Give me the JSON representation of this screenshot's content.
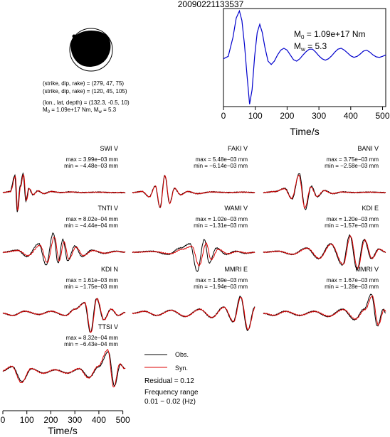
{
  "title": "20090221133537",
  "mechanism": {
    "lines": [
      "(strike, dip, rake) = (279, 47, 75)",
      "(strike, dip, rake) = (120, 45, 105)",
      "(lon., lat, depth) = (132.3, -0.5, 10)"
    ],
    "m0_line": "M₀ = 1.09e+17 Nm, Mᵥ = 5.3",
    "m0_prefix": "M",
    "m0_sub": "0",
    "m0_value": " = 1.09e+17 Nm, M",
    "mw_sub": "w",
    "mw_value": " = 5.3",
    "colors": {
      "compression": "#000000",
      "dilatation": "#ffffff"
    }
  },
  "stf": {
    "xlabel": "Time/s",
    "xticks": [
      0,
      100,
      200,
      300,
      400,
      500
    ],
    "xlim": [
      0,
      510
    ],
    "ylim": [
      -1.0,
      1.05
    ],
    "m0_text": " = 1.09e+17 Nm",
    "mw_text": " = 5.3",
    "m_letter": "M",
    "m0_sub": "0",
    "mw_sub": "w",
    "color": "#0000cc",
    "x": [
      0,
      15,
      30,
      40,
      50,
      58,
      66,
      74,
      82,
      90,
      98,
      106,
      114,
      122,
      130,
      140,
      150,
      160,
      170,
      180,
      190,
      200,
      210,
      220,
      230,
      240,
      250,
      260,
      270,
      280,
      290,
      300,
      310,
      320,
      330,
      340,
      350,
      360,
      370,
      380,
      390,
      400,
      410,
      420,
      430,
      440,
      450,
      460,
      470,
      480,
      490,
      500,
      510
    ],
    "y": [
      0.0,
      0.05,
      0.45,
      0.85,
      1.0,
      0.8,
      0.3,
      -0.35,
      -0.95,
      -0.65,
      0.05,
      0.55,
      0.72,
      0.55,
      0.25,
      -0.05,
      -0.12,
      -0.05,
      0.08,
      0.18,
      0.22,
      0.18,
      0.08,
      -0.02,
      -0.05,
      0.0,
      0.08,
      0.15,
      0.2,
      0.2,
      0.14,
      0.06,
      0.0,
      -0.03,
      0.0,
      0.06,
      0.14,
      0.2,
      0.22,
      0.18,
      0.12,
      0.06,
      0.03,
      0.05,
      0.1,
      0.16,
      0.18,
      0.14,
      0.08,
      0.04,
      0.03,
      0.05,
      0.08
    ]
  },
  "chart_data": {
    "type": "line",
    "title": "20090221133537",
    "xlabel": "Time/s",
    "xticks": [
      0,
      100,
      200,
      300,
      400,
      500
    ],
    "xlim": [
      0,
      510
    ],
    "legend": {
      "obs": "Obs.",
      "syn": "Syn.",
      "placement": "bottom-right"
    },
    "series_colors": {
      "obs": "#000000",
      "syn": "#dd0000"
    },
    "residual": "Residual = 0.12",
    "freq_label": "Frequency range",
    "freq_value": "0.01 − 0.02 (Hz)",
    "stations": [
      {
        "name": "SWI V",
        "max": "max = 3.99e−03 mm",
        "min": "min = −4.48e−03 mm",
        "peaks": [
          [
            0,
            0
          ],
          [
            30,
            0.05
          ],
          [
            50,
            0.8
          ],
          [
            60,
            -0.9
          ],
          [
            72,
            0.3
          ],
          [
            84,
            0.9
          ],
          [
            96,
            -0.4
          ],
          [
            108,
            0.2
          ],
          [
            125,
            -0.1
          ],
          [
            145,
            0.08
          ],
          [
            170,
            -0.05
          ],
          [
            200,
            0.05
          ],
          [
            240,
            0
          ],
          [
            280,
            0.03
          ],
          [
            330,
            0
          ],
          [
            400,
            0.02
          ],
          [
            450,
            0
          ],
          [
            510,
            0
          ]
        ],
        "syn_scale": 0.95,
        "syn_shift": 2
      },
      {
        "name": "FAKI V",
        "max": "max = 5.48e−03 mm",
        "min": "min = −6.14e−03 mm",
        "peaks": [
          [
            0,
            0
          ],
          [
            40,
            0.05
          ],
          [
            70,
            -0.2
          ],
          [
            95,
            0.3
          ],
          [
            115,
            -0.7
          ],
          [
            135,
            0.8
          ],
          [
            155,
            -0.5
          ],
          [
            175,
            0.2
          ],
          [
            200,
            -0.1
          ],
          [
            230,
            0.05
          ],
          [
            270,
            -0.05
          ],
          [
            330,
            0.03
          ],
          [
            400,
            0
          ],
          [
            460,
            0.02
          ],
          [
            510,
            0
          ]
        ],
        "syn_scale": 1.0,
        "syn_shift": 1
      },
      {
        "name": "BANI V",
        "max": "max = 3.75e−03 mm",
        "min": "min = −2.58e−03 mm",
        "peaks": [
          [
            0,
            0
          ],
          [
            50,
            0.05
          ],
          [
            90,
            0.2
          ],
          [
            120,
            -0.3
          ],
          [
            150,
            0.9
          ],
          [
            175,
            -0.8
          ],
          [
            200,
            0.3
          ],
          [
            225,
            -0.2
          ],
          [
            255,
            0.1
          ],
          [
            290,
            -0.05
          ],
          [
            330,
            0.03
          ],
          [
            380,
            0
          ],
          [
            440,
            0.02
          ],
          [
            510,
            0
          ]
        ],
        "syn_scale": 0.9,
        "syn_shift": -2
      },
      {
        "name": "TNTI V",
        "max": "max = 8.02e−04 mm",
        "min": "min = −4.44e−04 mm",
        "peaks": [
          [
            0,
            0
          ],
          [
            60,
            0.1
          ],
          [
            100,
            -0.2
          ],
          [
            150,
            0.4
          ],
          [
            180,
            -0.6
          ],
          [
            210,
            0.9
          ],
          [
            230,
            -0.5
          ],
          [
            250,
            0.6
          ],
          [
            270,
            -0.4
          ],
          [
            300,
            0.3
          ],
          [
            330,
            -0.2
          ],
          [
            370,
            0.1
          ],
          [
            420,
            -0.05
          ],
          [
            470,
            0.05
          ],
          [
            510,
            0
          ]
        ],
        "syn_scale": 0.8,
        "syn_shift": 5
      },
      {
        "name": "WAMI V",
        "max": "max = 1.02e−03 mm",
        "min": "min = −1.31e−03 mm",
        "peaks": [
          [
            0,
            0
          ],
          [
            80,
            0.05
          ],
          [
            150,
            -0.1
          ],
          [
            200,
            0.2
          ],
          [
            240,
            0.4
          ],
          [
            270,
            -0.9
          ],
          [
            300,
            0.6
          ],
          [
            320,
            -0.5
          ],
          [
            350,
            0.2
          ],
          [
            390,
            -0.1
          ],
          [
            430,
            0.05
          ],
          [
            470,
            -0.05
          ],
          [
            510,
            0
          ]
        ],
        "syn_scale": 0.7,
        "syn_shift": 8
      },
      {
        "name": "KDI E",
        "max": "max = 1.20e−03 mm",
        "min": "min = −1.57e−03 mm",
        "peaks": [
          [
            0,
            0
          ],
          [
            60,
            0.05
          ],
          [
            120,
            -0.1
          ],
          [
            180,
            0.2
          ],
          [
            230,
            -0.3
          ],
          [
            280,
            0.4
          ],
          [
            330,
            -0.6
          ],
          [
            360,
            0.8
          ],
          [
            390,
            -0.8
          ],
          [
            420,
            0.6
          ],
          [
            450,
            -0.3
          ],
          [
            480,
            0.15
          ],
          [
            510,
            0
          ]
        ],
        "syn_scale": 0.95,
        "syn_shift": 3
      },
      {
        "name": "KDI N",
        "max": "max = 1.61e−03 mm",
        "min": "min = −1.75e−03 mm",
        "peaks": [
          [
            0,
            0
          ],
          [
            40,
            -0.1
          ],
          [
            90,
            0.1
          ],
          [
            150,
            -0.05
          ],
          [
            200,
            0.1
          ],
          [
            260,
            -0.1
          ],
          [
            300,
            0.2
          ],
          [
            340,
            0.5
          ],
          [
            365,
            -0.9
          ],
          [
            390,
            0.7
          ],
          [
            420,
            -0.3
          ],
          [
            450,
            0.2
          ],
          [
            480,
            -0.1
          ],
          [
            510,
            0.05
          ]
        ],
        "syn_scale": 1.0,
        "syn_shift": 2
      },
      {
        "name": "MMRI E",
        "max": "max = 1.69e−03 mm",
        "min": "min = −1.94e−03 mm",
        "peaks": [
          [
            0,
            0
          ],
          [
            50,
            0.1
          ],
          [
            100,
            -0.1
          ],
          [
            160,
            0.15
          ],
          [
            220,
            -0.15
          ],
          [
            280,
            0.2
          ],
          [
            330,
            -0.2
          ],
          [
            380,
            0.3
          ],
          [
            420,
            -0.4
          ],
          [
            450,
            0.8
          ],
          [
            480,
            -0.8
          ],
          [
            510,
            0.3
          ]
        ],
        "syn_scale": 0.95,
        "syn_shift": 2
      },
      {
        "name": "MMRI V",
        "max": "max = 1.67e−03 mm",
        "min": "min = −1.28e−03 mm",
        "peaks": [
          [
            0,
            0
          ],
          [
            40,
            -0.1
          ],
          [
            90,
            0.1
          ],
          [
            150,
            -0.1
          ],
          [
            210,
            0.1
          ],
          [
            270,
            -0.15
          ],
          [
            330,
            0.2
          ],
          [
            380,
            -0.3
          ],
          [
            420,
            0.2
          ],
          [
            450,
            0.9
          ],
          [
            475,
            -0.6
          ],
          [
            500,
            0.2
          ],
          [
            510,
            0
          ]
        ],
        "syn_scale": 0.9,
        "syn_shift": 4
      },
      {
        "name": "TTSI V",
        "max": "max = 8.32e−04 mm",
        "min": "min = −6.43e−04 mm",
        "peaks": [
          [
            0,
            0
          ],
          [
            40,
            0.2
          ],
          [
            80,
            -0.5
          ],
          [
            120,
            0.1
          ],
          [
            170,
            -0.1
          ],
          [
            220,
            0.05
          ],
          [
            270,
            -0.1
          ],
          [
            320,
            0.1
          ],
          [
            360,
            -0.3
          ],
          [
            400,
            0.2
          ],
          [
            440,
            0.9
          ],
          [
            465,
            -0.7
          ],
          [
            490,
            0.3
          ],
          [
            510,
            0.1
          ]
        ],
        "syn_scale": 1.1,
        "syn_shift": -3
      }
    ]
  }
}
